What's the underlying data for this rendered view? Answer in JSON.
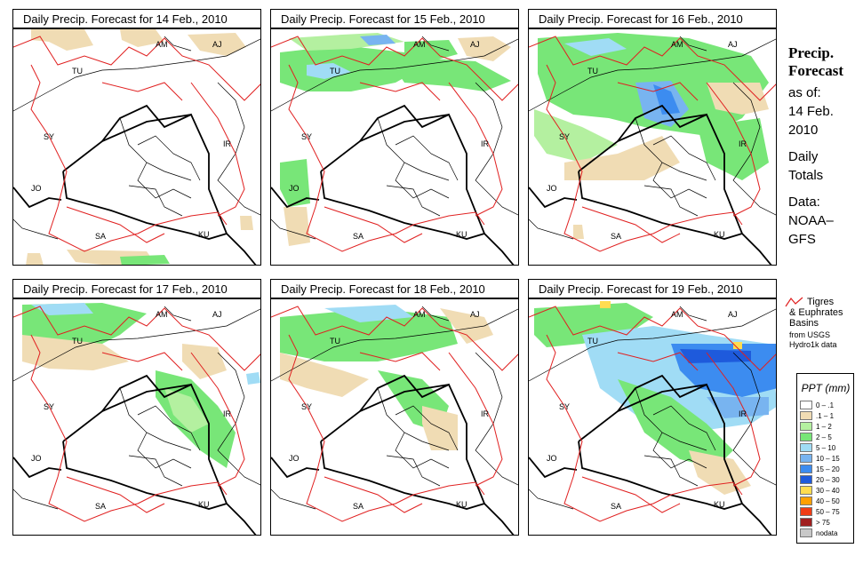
{
  "panels": [
    {
      "title": "Daily Precip. Forecast for  14 Feb., 2010"
    },
    {
      "title": "Daily Precip. Forecast for  15 Feb., 2010"
    },
    {
      "title": "Daily Precip. Forecast for  16 Feb., 2010"
    },
    {
      "title": "Daily Precip. Forecast for  17 Feb., 2010"
    },
    {
      "title": "Daily Precip. Forecast for  18 Feb., 2010"
    },
    {
      "title": "Daily Precip. Forecast for  19 Feb., 2010"
    }
  ],
  "country_labels": {
    "am": "AM",
    "aj": "AJ",
    "tu": "TU",
    "sy": "SY",
    "ir": "IR",
    "jo": "JO",
    "sa": "SA",
    "ku": "KU"
  },
  "side": {
    "title_line1": "Precip.",
    "title_line2": "Forecast",
    "asof": "as of:",
    "date_line1": "14 Feb.",
    "date_line2": "2010",
    "daily_line1": "Daily",
    "daily_line2": "Totals",
    "data_line1": "Data:",
    "data_line2": "NOAA–",
    "data_line3": "GFS"
  },
  "basin_legend": {
    "line1": "Tigres",
    "line2": "& Euphrates",
    "line3": "Basins",
    "line4": "from USGS",
    "line5": "Hydro1k data",
    "line_color": "#e02020"
  },
  "legend": {
    "title": "PPT (mm)",
    "classes": [
      {
        "label": "0 – .1",
        "color": "#ffffff"
      },
      {
        "label": ".1 – 1",
        "color": "#f0dcb4"
      },
      {
        "label": "1 – 2",
        "color": "#b4f0a0"
      },
      {
        "label": "2 – 5",
        "color": "#78e678"
      },
      {
        "label": "5 – 10",
        "color": "#a0dcf5"
      },
      {
        "label": "10 – 15",
        "color": "#78b4f0"
      },
      {
        "label": "15 – 20",
        "color": "#3c8cf0"
      },
      {
        "label": "20 – 30",
        "color": "#1e5adc"
      },
      {
        "label": "30 – 40",
        "color": "#ffdc50"
      },
      {
        "label": "40 – 50",
        "color": "#ffa000"
      },
      {
        "label": "50 – 75",
        "color": "#f03c14"
      },
      {
        "label": "> 75",
        "color": "#a01e1e"
      },
      {
        "label": "nodata",
        "color": "#c8c8c8"
      }
    ]
  }
}
